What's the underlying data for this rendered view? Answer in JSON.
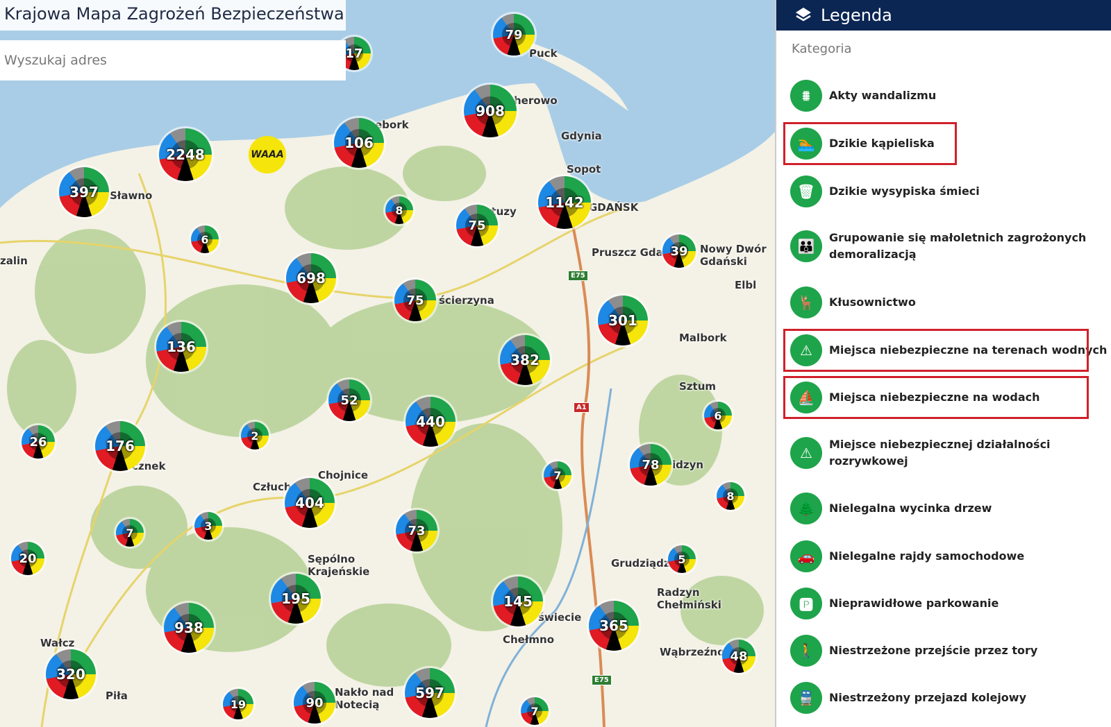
{
  "header": {
    "title": "Krajowa Mapa Zagrożeń Bezpieczeństwa",
    "search_placeholder": "Wyszukaj adres"
  },
  "colors": {
    "legend_header": "#0b2653",
    "category_icon": "#1ea44a",
    "highlight": "#d0202a",
    "cluster_segments": [
      "#1e88e5",
      "#1ea44a",
      "#f5e50a",
      "#e01b24",
      "#000000",
      "#8d8d8d"
    ]
  },
  "map": {
    "clusters": [
      "79",
      "17",
      "908",
      "106",
      "2248",
      "397",
      "8",
      "75",
      "1142",
      "6",
      "39",
      "698",
      "75",
      "301",
      "136",
      "382",
      "52",
      "440",
      "6",
      "26",
      "176",
      "2",
      "7",
      "78",
      "8",
      "404",
      "7",
      "3",
      "73",
      "20",
      "5",
      "195",
      "145",
      "938",
      "365",
      "48",
      "320",
      "597",
      "19",
      "90",
      "7"
    ],
    "marker": {
      "icon": "vandalism-icon",
      "label": "WAAA"
    },
    "cities": [
      "Puck",
      "herowo",
      "ebork",
      "Gdynia",
      "Sopot",
      "Sławno",
      "GDAŃSK",
      "rtuzy",
      "Pruszcz Gda",
      "Nowy Dwór\nGdański",
      "zalin",
      "ścierzyna",
      "Elbl",
      "Malbork",
      "Sztum",
      "cznek",
      "Chojnice",
      "Człuch",
      "idzyn",
      "Sępólno\nKrajeńskie",
      "Grudziądz",
      "Radzyn\nChełmiński",
      "świecie",
      "Chełmno",
      "Wałcz",
      "Wąbrzeźno",
      "Piła",
      "Nakło nad\nNotecią"
    ],
    "roads": [
      "E75",
      "A1",
      "E75"
    ]
  },
  "legend": {
    "title": "Legenda",
    "section": "Kategoria",
    "items": [
      {
        "label": "Akty wandalizmu",
        "icon": "vandalism-icon",
        "highlighted": false
      },
      {
        "label": "Dzikie kąpieliska",
        "icon": "swimming-icon",
        "highlighted": true
      },
      {
        "label": "Dzikie wysypiska śmieci",
        "icon": "trash-icon",
        "highlighted": false
      },
      {
        "label": "Grupowanie się małoletnich zagrożonych\ndemoralizacją",
        "icon": "group-icon",
        "highlighted": false
      },
      {
        "label": "Kłusownictwo",
        "icon": "poaching-icon",
        "highlighted": false
      },
      {
        "label": "Miejsca niebezpieczne na terenach wodnych",
        "icon": "water-danger-icon",
        "highlighted": true
      },
      {
        "label": "Miejsca niebezpieczne na wodach",
        "icon": "boat-danger-icon",
        "highlighted": true
      },
      {
        "label": "Miejsce niebezpiecznej działalności\nrozrywkowej",
        "icon": "entertainment-danger-icon",
        "highlighted": false
      },
      {
        "label": "Nielegalna wycinka drzew",
        "icon": "tree-cutting-icon",
        "highlighted": false
      },
      {
        "label": "Nielegalne rajdy samochodowe",
        "icon": "car-race-icon",
        "highlighted": false
      },
      {
        "label": "Nieprawidłowe parkowanie",
        "icon": "parking-icon",
        "highlighted": false
      },
      {
        "label": "Niestrzeżone przejście przez tory",
        "icon": "rail-crossing-walk-icon",
        "highlighted": false
      },
      {
        "label": "Niestrzeżony przejazd kolejowy",
        "icon": "rail-crossing-icon",
        "highlighted": false
      }
    ]
  }
}
